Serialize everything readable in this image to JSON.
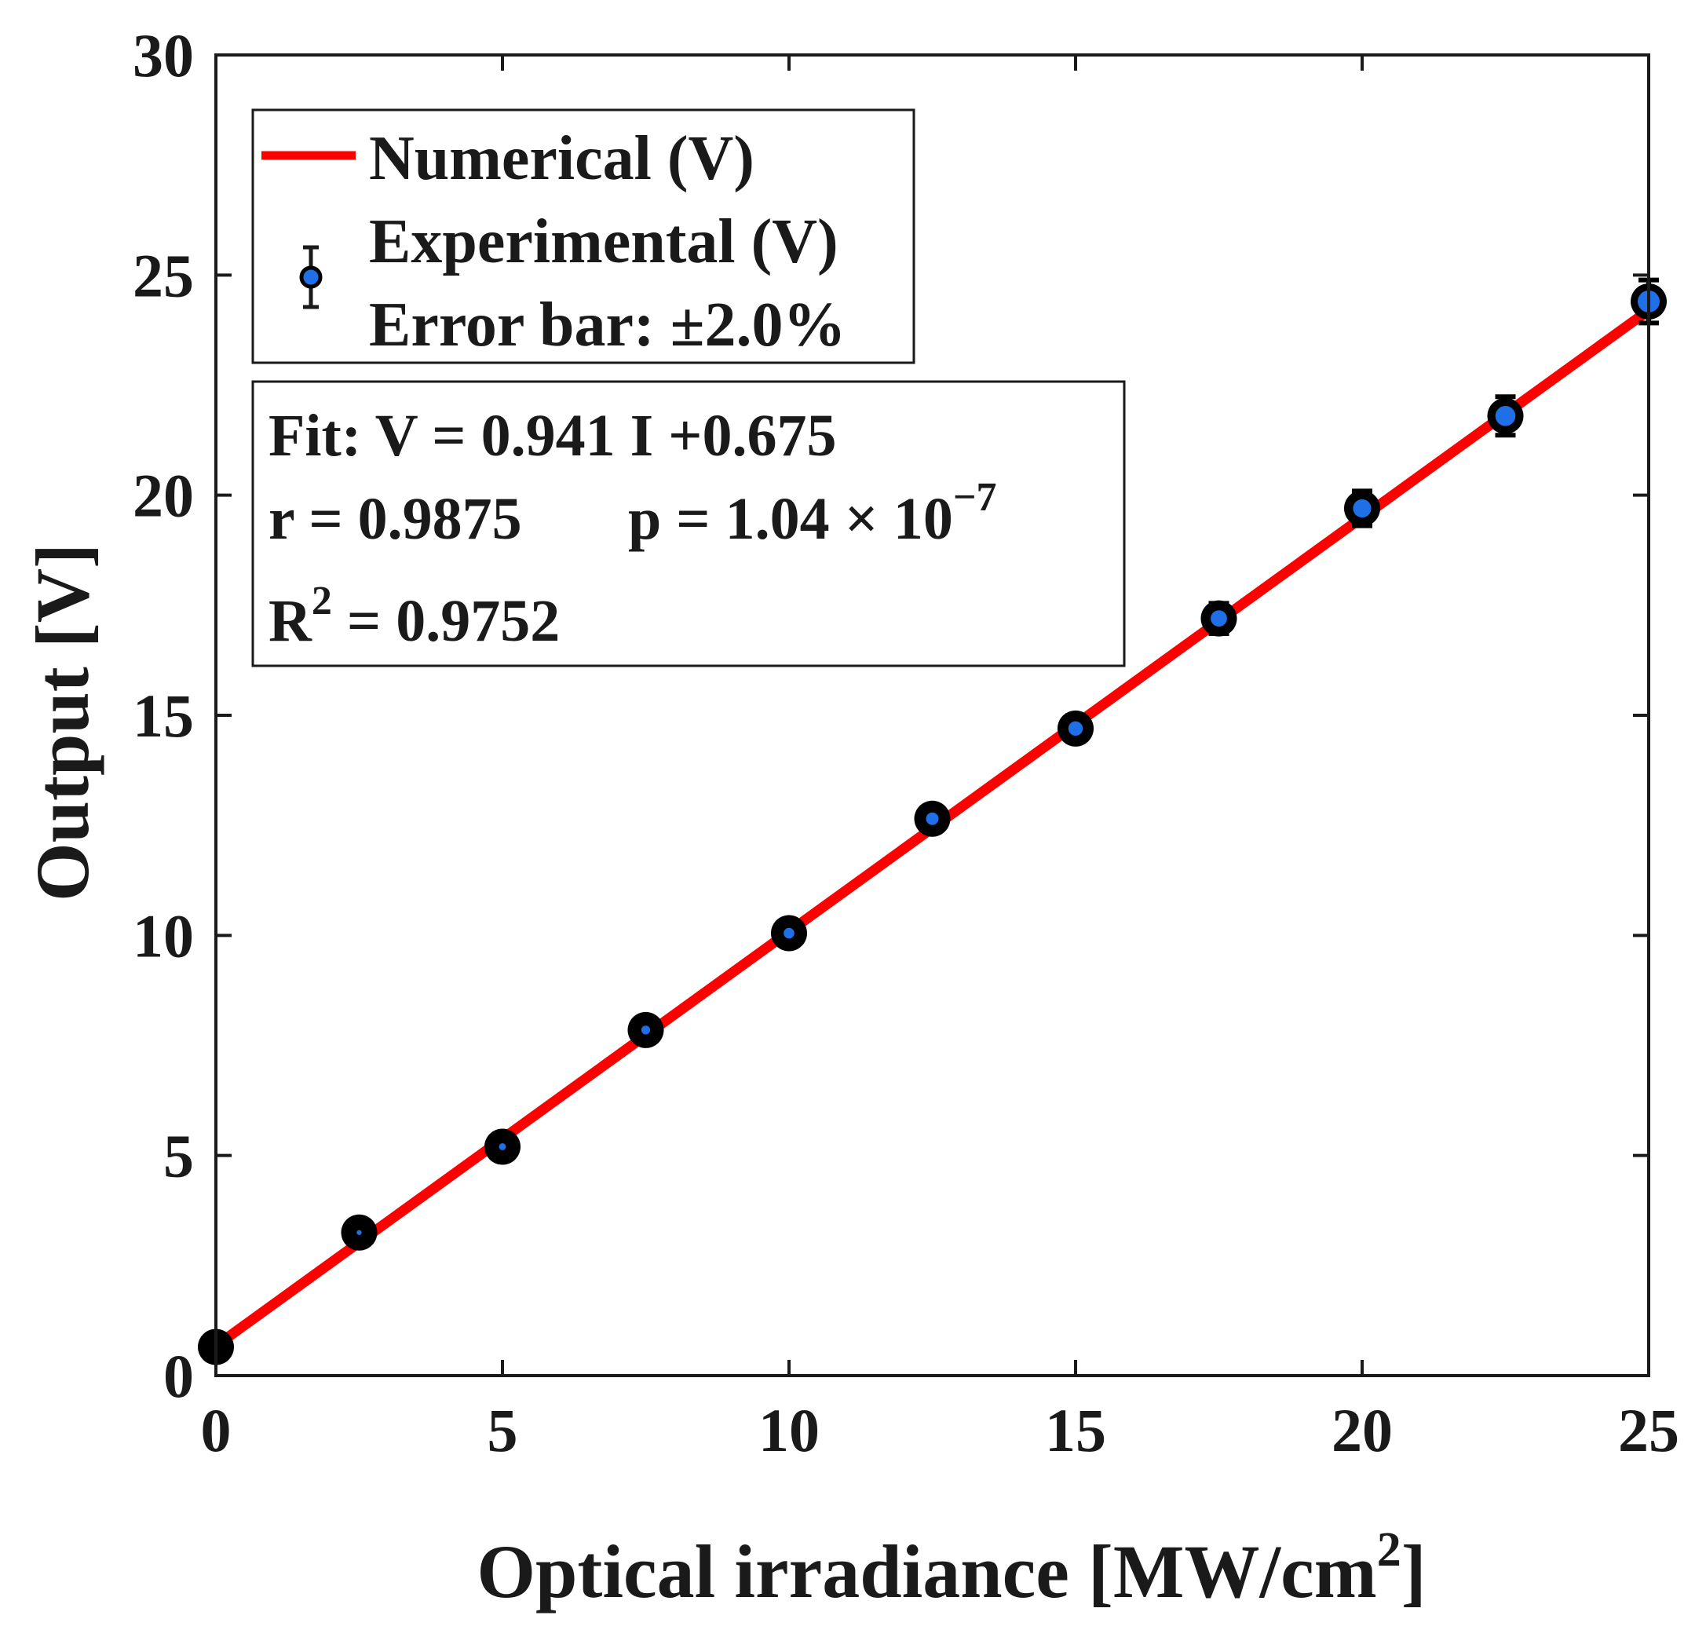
{
  "chart_data": {
    "type": "line",
    "xlabel": "Optical irradiance [MW/cm",
    "xlabel_sup": "2",
    "xlabel_end": "]",
    "ylabel": "Output [V]",
    "xlim": [
      0,
      25
    ],
    "ylim": [
      0,
      30
    ],
    "xticks": [
      0,
      5,
      10,
      15,
      20,
      25
    ],
    "yticks": [
      0,
      5,
      10,
      15,
      20,
      25,
      30
    ],
    "grid": false,
    "legend_position": "top-left",
    "series": [
      {
        "name": "Numerical (V)",
        "kind": "line",
        "color": "#ff0000",
        "x": [
          0,
          25
        ],
        "y": [
          0.675,
          24.2
        ]
      },
      {
        "name": "Experimental (V)",
        "kind": "errorbar",
        "marker_color": "#1f6fe6",
        "edge_color": "#000000",
        "error_percent": 2.0,
        "x": [
          0,
          2.5,
          5,
          7.5,
          10,
          12.5,
          15,
          17.5,
          20,
          22.5,
          25
        ],
        "y": [
          0.65,
          3.25,
          5.2,
          7.85,
          10.05,
          12.65,
          14.7,
          17.2,
          19.7,
          21.8,
          24.4
        ]
      }
    ],
    "legend": {
      "line_label": "Numerical (V)",
      "marker_label": "Experimental (V)",
      "error_label": "Error bar: ±2.0%"
    },
    "annotation": {
      "fit": "Fit:  V = 0.941 I +0.675",
      "r": "r = 0.9875",
      "p": "p = 1.04 × 10",
      "p_exp": "−7",
      "r2_base": "R",
      "r2_sup": "2",
      "r2_value": " = 0.9752"
    }
  }
}
